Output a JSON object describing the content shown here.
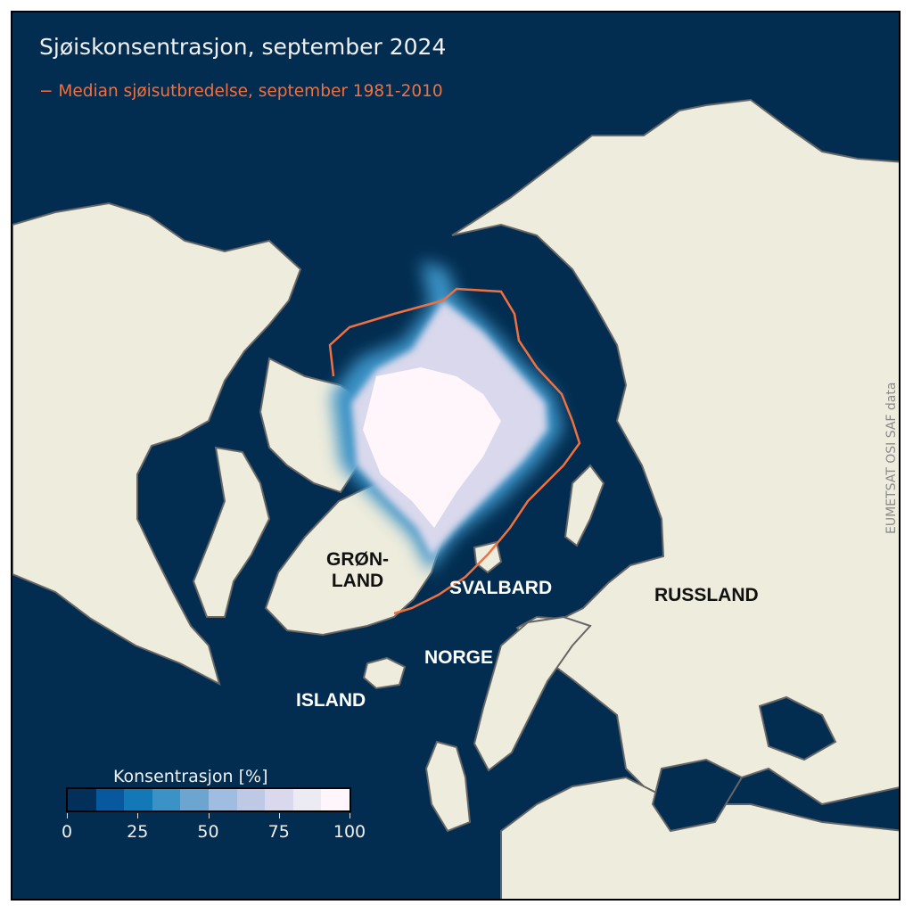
{
  "title": "Sjøiskonsentrasjon, september 2024",
  "legend": {
    "line_label": "− Median sjøisutbredelse, september 1981-2010",
    "line_color": "#f07040"
  },
  "labels": {
    "greenland": "GRØN-\nLAND",
    "svalbard": "SVALBARD",
    "russia": "RUSSLAND",
    "norway": "NORGE",
    "iceland": "ISLAND"
  },
  "credit": "EUMETSAT OSI SAF data",
  "colorbar": {
    "title": "Konsentrasjon [%]",
    "ticks": [
      "0",
      "25",
      "50",
      "75",
      "100"
    ],
    "range": [
      0,
      100
    ],
    "step": 10,
    "colors": [
      "#03305a",
      "#07589c",
      "#1279b6",
      "#3b92c6",
      "#6ca6d0",
      "#9ebde0",
      "#bdc9e5",
      "#d9d8ec",
      "#ecebf4",
      "#fff6fb"
    ]
  },
  "colors": {
    "ocean": "#022d50",
    "land": "#eeecdc",
    "coast": "#666666"
  }
}
